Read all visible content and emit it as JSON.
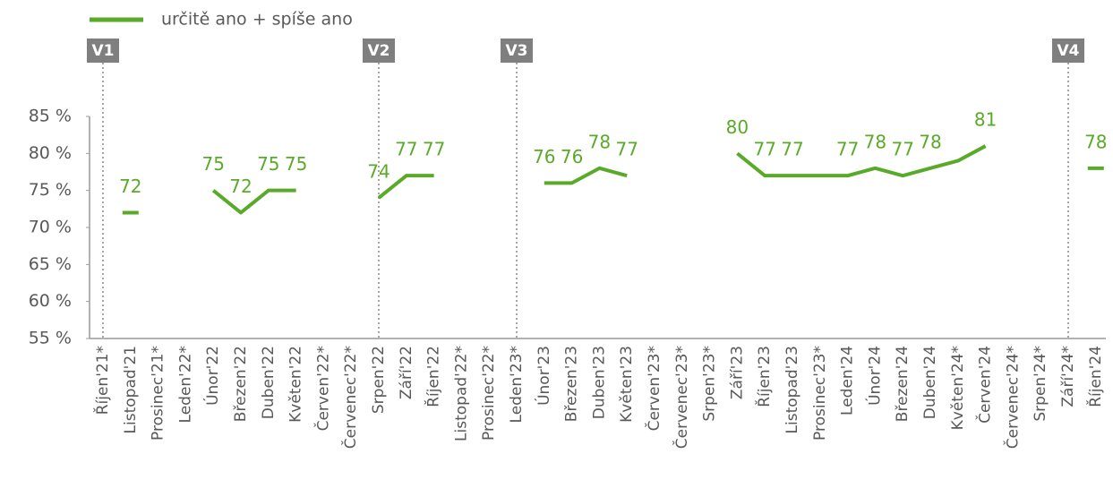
{
  "chart_data": {
    "type": "line",
    "categories": [
      "Říjen'21*",
      "Listopad'21",
      "Prosinec'21*",
      "Leden'22*",
      "Únor'22",
      "Březen'22",
      "Duben'22",
      "Květen'22",
      "Červen'22*",
      "Červenec'22*",
      "Srpen'22",
      "Září'22",
      "Říjen'22",
      "Listopad'22*",
      "Prosinec'22*",
      "Leden'23*",
      "Únor'23",
      "Březen'23",
      "Duben'23",
      "Květen'23",
      "Červen'23*",
      "Červenec'23*",
      "Srpen'23*",
      "Září'23",
      "Říjen'23",
      "Listopad'23",
      "Prosinec'23*",
      "Leden'24",
      "Únor'24",
      "Březen'24",
      "Duben'24",
      "Květen'24*",
      "Červen'24",
      "Červenec'24*",
      "Srpen'24*",
      "Září'24*",
      "Říjen'24"
    ],
    "series": [
      {
        "name": "určitě ano + spíše ano",
        "color": "#5aaa2a",
        "values": [
          null,
          72,
          null,
          null,
          75,
          72,
          75,
          75,
          null,
          null,
          74,
          77,
          77,
          null,
          null,
          null,
          76,
          76,
          78,
          77,
          null,
          null,
          null,
          80,
          77,
          77,
          77,
          77,
          78,
          77,
          78,
          79,
          81,
          null,
          null,
          null,
          78
        ],
        "value_labels": [
          null,
          "72",
          null,
          null,
          "75",
          "72",
          "75",
          "75",
          null,
          null,
          "74",
          "77",
          "77",
          null,
          null,
          null,
          "76",
          "76",
          "78",
          "77",
          null,
          null,
          null,
          "80",
          "77",
          "77",
          null,
          "77",
          "78",
          "77",
          "78",
          null,
          "81",
          null,
          null,
          null,
          "78"
        ]
      }
    ],
    "ylim": [
      55,
      85
    ],
    "yticks": [
      {
        "value": 55,
        "label": "55 %"
      },
      {
        "value": 60,
        "label": "60 %"
      },
      {
        "value": 65,
        "label": "65 %"
      },
      {
        "value": 70,
        "label": "70 %"
      },
      {
        "value": 75,
        "label": "75 %"
      },
      {
        "value": 80,
        "label": "80 %"
      },
      {
        "value": 85,
        "label": "85 %"
      }
    ],
    "annotations": [
      {
        "label": "V1",
        "category": "Říjen'21*"
      },
      {
        "label": "V2",
        "category": "Srpen'22"
      },
      {
        "label": "V3",
        "category": "Leden'23*"
      },
      {
        "label": "V4",
        "category": "Září'24*"
      }
    ],
    "legend": "top-left"
  }
}
